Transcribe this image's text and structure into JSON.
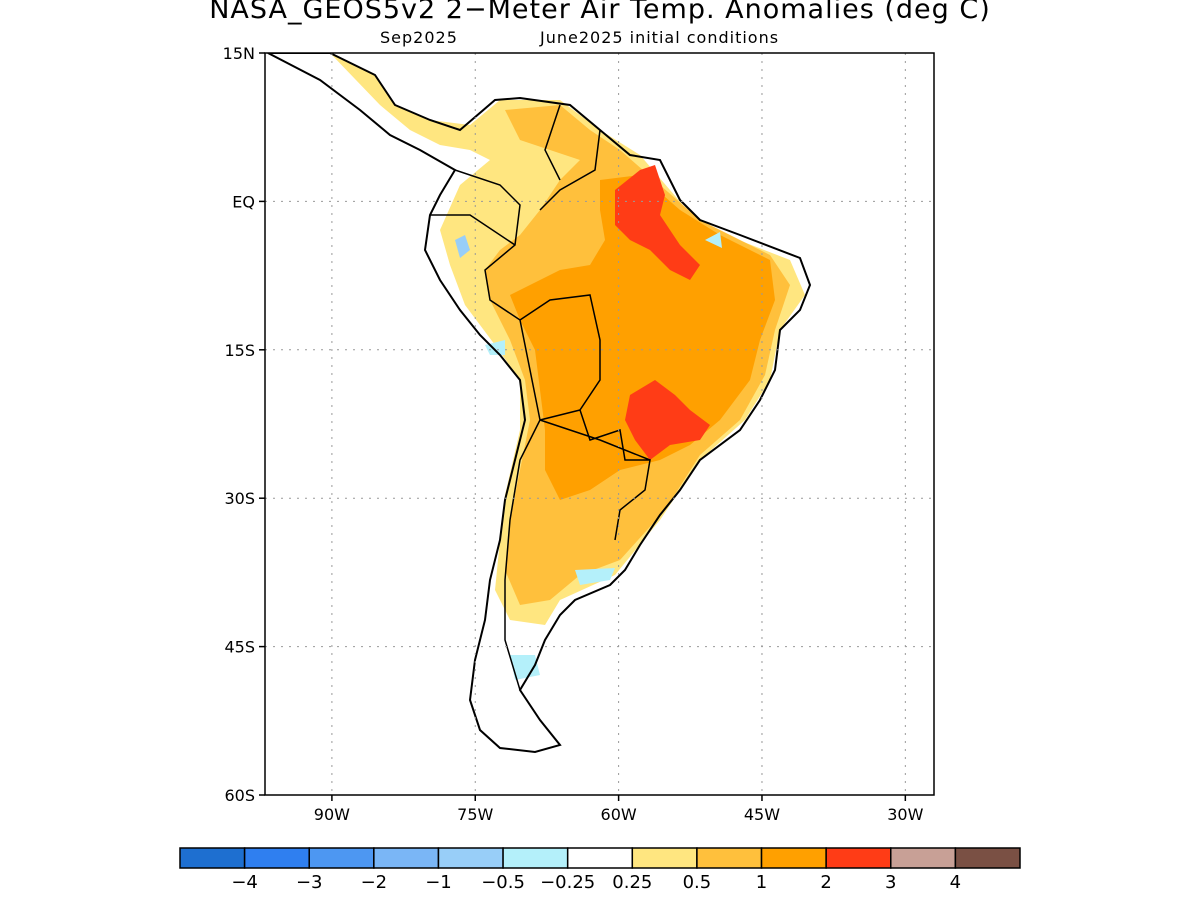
{
  "header": {
    "title": "NASA_GEOS5v2 2−Meter Air Temp. Anomalies (deg C)",
    "subtitle_left": "Sep2025",
    "subtitle_right": "June2025 initial conditions"
  },
  "map": {
    "region": "South America",
    "lat_range": [
      -60,
      15
    ],
    "lon_range": [
      -97,
      -27
    ],
    "lat_ticks": [
      {
        "value": 15,
        "label": "15N"
      },
      {
        "value": 0,
        "label": "EQ"
      },
      {
        "value": -15,
        "label": "15S"
      },
      {
        "value": -30,
        "label": "30S"
      },
      {
        "value": -45,
        "label": "45S"
      },
      {
        "value": -60,
        "label": "60S"
      }
    ],
    "lon_ticks": [
      {
        "value": -90,
        "label": "90W"
      },
      {
        "value": -75,
        "label": "75W"
      },
      {
        "value": -60,
        "label": "60W"
      },
      {
        "value": -45,
        "label": "45W"
      },
      {
        "value": -30,
        "label": "30W"
      }
    ],
    "grid": "dotted"
  },
  "colorbar": {
    "colors": [
      "#1e6fd0",
      "#2f7ff0",
      "#4d97f2",
      "#7ab6f6",
      "#98cef8",
      "#b4f0fa",
      "#ffffff",
      "#ffe680",
      "#ffc03c",
      "#ffa000",
      "#ff3c16",
      "#c8a096",
      "#7a5044"
    ],
    "labels": [
      "−4",
      "−3",
      "−2",
      "−1",
      "−0.5",
      "−0.25",
      "0.25",
      "0.5",
      "1",
      "2",
      "3",
      "4"
    ]
  }
}
